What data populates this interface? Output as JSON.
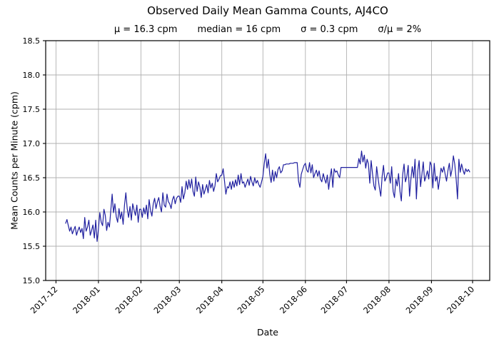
{
  "chart_data": {
    "type": "line",
    "title": "Observed Daily Mean Gamma Counts, AJ4CO",
    "stats": [
      "μ = 16.3 cpm",
      "median = 16 cpm",
      "σ = 0.3 cpm",
      "σ/μ = 2%"
    ],
    "xlabel": "Date",
    "ylabel": "Mean Counts per Minute (cpm)",
    "ylim": [
      15.0,
      18.5
    ],
    "y_ticks": [
      15.0,
      15.5,
      16.0,
      16.5,
      17.0,
      17.5,
      18.0,
      18.5
    ],
    "y_tick_decimals": 1,
    "x_tick_labels": [
      "2017-12",
      "2018-01",
      "2018-02",
      "2018-03",
      "2018-04",
      "2018-05",
      "2018-06",
      "2018-07",
      "2018-08",
      "2018-09",
      "2018-10"
    ],
    "x_tick_days": [
      0,
      31,
      62,
      90,
      121,
      151,
      182,
      212,
      243,
      274,
      304
    ],
    "x_range_days": [
      -7.5,
      316.5
    ],
    "x_tick_rotation": 45,
    "grid": true,
    "legend": "none",
    "line_color": "#1f1f9f",
    "grid_color": "#b0b0b0",
    "spine_color": "#000000",
    "background_color": "#ffffff",
    "series_name": "daily mean gamma counts",
    "series_start_date": "2017-12-08",
    "series_start_day": 7,
    "series_cadence": "daily",
    "values": [
      15.83,
      15.89,
      15.8,
      15.72,
      15.78,
      15.68,
      15.74,
      15.79,
      15.66,
      15.73,
      15.78,
      15.7,
      15.76,
      15.61,
      15.92,
      15.72,
      15.78,
      15.88,
      15.66,
      15.73,
      15.81,
      15.62,
      15.88,
      15.57,
      15.75,
      15.99,
      15.85,
      15.8,
      16.04,
      15.95,
      15.73,
      15.85,
      15.78,
      16.02,
      16.26,
      15.99,
      16.12,
      15.93,
      15.85,
      16.05,
      15.9,
      16.0,
      15.82,
      16.1,
      16.28,
      16.05,
      15.92,
      16.08,
      15.88,
      16.12,
      16.03,
      15.95,
      16.1,
      15.85,
      16.04,
      16.04,
      15.92,
      16.06,
      15.97,
      16.1,
      15.9,
      16.18,
      16.02,
      15.94,
      16.12,
      16.2,
      16.05,
      16.15,
      16.21,
      16.08,
      16.0,
      16.28,
      16.1,
      16.07,
      16.26,
      16.15,
      16.12,
      16.05,
      16.18,
      16.23,
      16.12,
      16.2,
      16.23,
      16.23,
      16.14,
      16.37,
      16.19,
      16.28,
      16.45,
      16.33,
      16.47,
      16.35,
      16.48,
      16.3,
      16.23,
      16.51,
      16.3,
      16.44,
      16.36,
      16.21,
      16.4,
      16.26,
      16.33,
      16.4,
      16.28,
      16.46,
      16.35,
      16.42,
      16.3,
      16.38,
      16.56,
      16.44,
      16.48,
      16.53,
      16.54,
      16.63,
      16.45,
      16.26,
      16.37,
      16.35,
      16.44,
      16.33,
      16.45,
      16.36,
      16.47,
      16.38,
      16.54,
      16.4,
      16.56,
      16.42,
      16.44,
      16.36,
      16.42,
      16.48,
      16.39,
      16.52,
      16.44,
      16.38,
      16.5,
      16.42,
      16.46,
      16.4,
      16.36,
      16.44,
      16.52,
      16.71,
      16.85,
      16.64,
      16.77,
      16.55,
      16.43,
      16.61,
      16.45,
      16.59,
      16.5,
      16.62,
      16.66,
      16.57,
      16.6,
      16.69,
      16.69,
      16.7,
      16.7,
      16.7,
      16.71,
      16.71,
      16.71,
      16.72,
      16.72,
      16.72,
      16.45,
      16.36,
      16.55,
      16.62,
      16.68,
      16.71,
      16.61,
      16.58,
      16.72,
      16.57,
      16.69,
      16.5,
      16.56,
      16.61,
      16.52,
      16.6,
      16.48,
      16.44,
      16.56,
      16.48,
      16.42,
      16.54,
      16.33,
      16.5,
      16.63,
      16.36,
      16.63,
      16.58,
      16.6,
      16.54,
      16.5,
      16.65,
      16.65,
      16.65,
      16.65,
      16.65,
      16.65,
      16.65,
      16.65,
      16.65,
      16.65,
      16.65,
      16.65,
      16.65,
      16.78,
      16.7,
      16.89,
      16.73,
      16.83,
      16.64,
      16.77,
      16.7,
      16.42,
      16.75,
      16.55,
      16.38,
      16.32,
      16.66,
      16.5,
      16.35,
      16.23,
      16.52,
      16.68,
      16.45,
      16.5,
      16.57,
      16.57,
      16.42,
      16.66,
      16.3,
      16.21,
      16.48,
      16.38,
      16.56,
      16.3,
      16.16,
      16.55,
      16.7,
      16.44,
      16.52,
      16.68,
      16.23,
      16.48,
      16.66,
      16.5,
      16.77,
      16.19,
      16.6,
      16.75,
      16.37,
      16.55,
      16.73,
      16.45,
      16.52,
      16.6,
      16.48,
      16.73,
      16.68,
      16.35,
      16.71,
      16.45,
      16.52,
      16.33,
      16.48,
      16.64,
      16.58,
      16.66,
      16.55,
      16.45,
      16.6,
      16.71,
      16.52,
      16.62,
      16.82,
      16.7,
      16.48,
      16.19,
      16.77,
      16.58,
      16.7,
      16.61,
      16.55,
      16.63,
      16.59,
      16.62,
      16.58
    ]
  }
}
